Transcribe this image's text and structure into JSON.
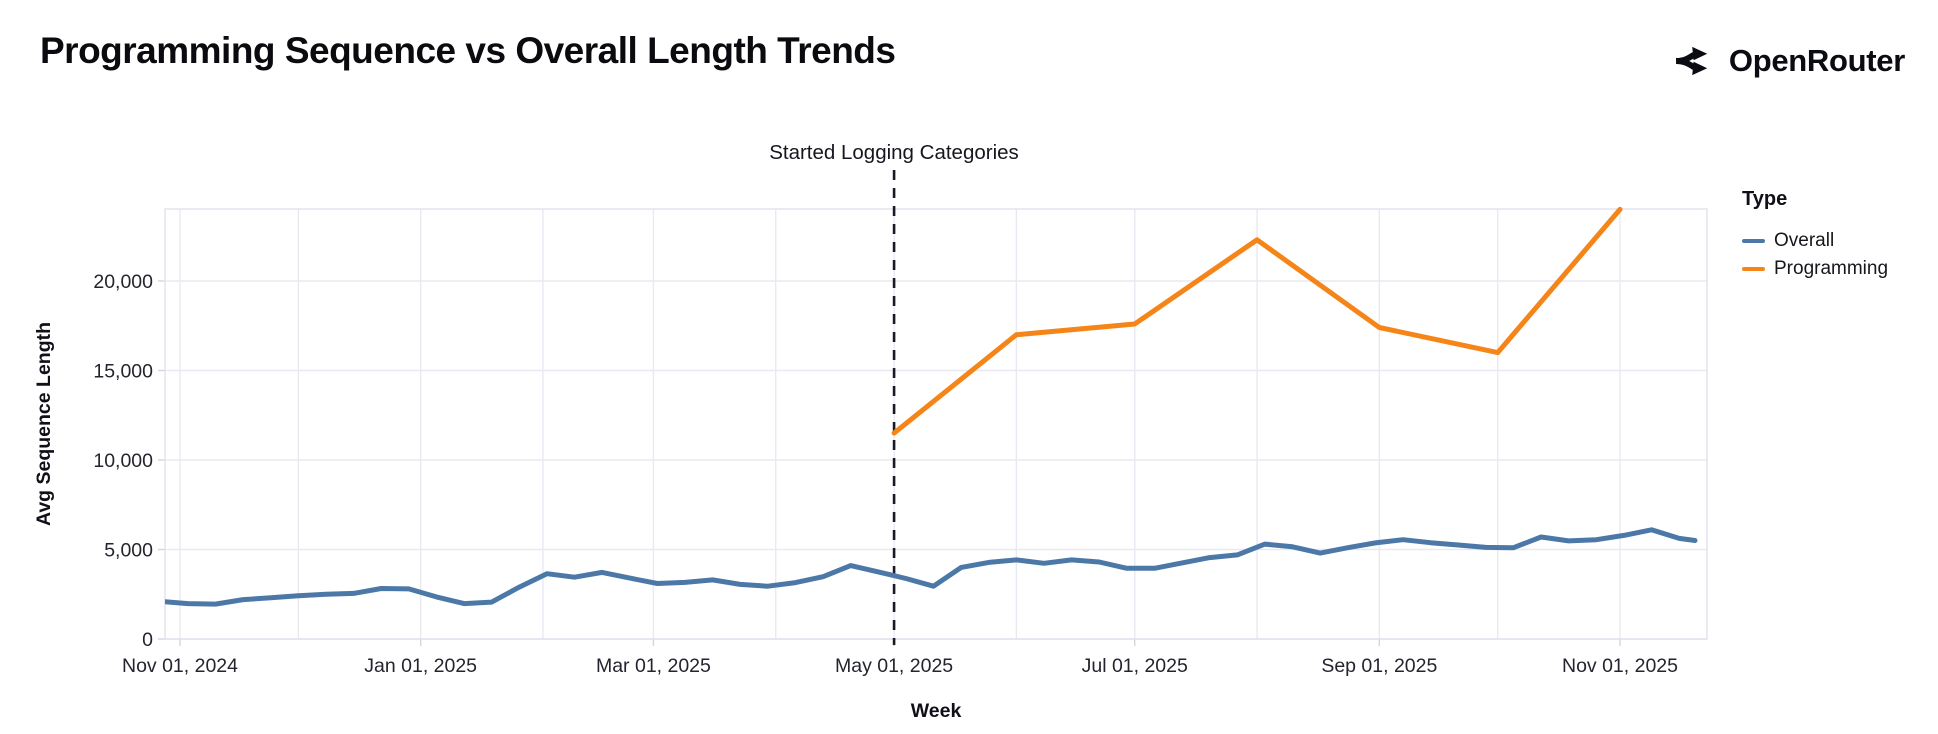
{
  "page": {
    "brand": "OpenRouter"
  },
  "chart_data": {
    "type": "line",
    "title": "Programming Sequence vs Overall Length Trends",
    "xlabel": "Week",
    "ylabel": "Avg Sequence Length",
    "ylim": [
      0,
      24000
    ],
    "grid": true,
    "y_ticks": [
      0,
      5000,
      10000,
      15000,
      20000
    ],
    "x_ticks": [
      {
        "date": "2024-11-01",
        "label": "Nov 01, 2024"
      },
      {
        "date": "2025-01-01",
        "label": "Jan 01, 2025"
      },
      {
        "date": "2025-03-01",
        "label": "Mar 01, 2025"
      },
      {
        "date": "2025-05-01",
        "label": "May 01, 2025"
      },
      {
        "date": "2025-07-01",
        "label": "Jul 01, 2025"
      },
      {
        "date": "2025-09-01",
        "label": "Sep 01, 2025"
      },
      {
        "date": "2025-11-01",
        "label": "Nov 01, 2025"
      }
    ],
    "x_grid_dates": [
      "2024-11-01",
      "2024-12-01",
      "2025-01-01",
      "2025-02-01",
      "2025-03-01",
      "2025-04-01",
      "2025-05-01",
      "2025-06-01",
      "2025-07-01",
      "2025-08-01",
      "2025-09-01",
      "2025-10-01",
      "2025-11-01"
    ],
    "annotation": {
      "text": "Started Logging Categories",
      "date": "2025-05-01"
    },
    "legend": {
      "title": "Type",
      "position": "right",
      "items": [
        {
          "label": "Overall",
          "color": "#4c78a8"
        },
        {
          "label": "Programming",
          "color": "#f58518"
        }
      ]
    },
    "colors": {
      "overall_line": "#4c78a8",
      "programming_line": "#f58518",
      "gridline": "#e9e9f2",
      "plot_border": "#e1e1ec",
      "tick_mark": "#d4d4e0",
      "axis_label": "#24242e",
      "annotation_rule": "#1a1a26"
    },
    "series": [
      {
        "name": "Overall",
        "color": "#4c78a8",
        "points": [
          [
            "2024-10-27",
            2100
          ],
          [
            "2024-11-03",
            1980
          ],
          [
            "2024-11-10",
            1950
          ],
          [
            "2024-11-17",
            2200
          ],
          [
            "2024-11-24",
            2300
          ],
          [
            "2024-12-01",
            2420
          ],
          [
            "2024-12-08",
            2500
          ],
          [
            "2024-12-15",
            2550
          ],
          [
            "2024-12-22",
            2820
          ],
          [
            "2024-12-29",
            2800
          ],
          [
            "2025-01-05",
            2350
          ],
          [
            "2025-01-12",
            1980
          ],
          [
            "2025-01-19",
            2060
          ],
          [
            "2025-01-26",
            2900
          ],
          [
            "2025-02-02",
            3650
          ],
          [
            "2025-02-09",
            3450
          ],
          [
            "2025-02-16",
            3720
          ],
          [
            "2025-02-23",
            3400
          ],
          [
            "2025-03-02",
            3100
          ],
          [
            "2025-03-09",
            3160
          ],
          [
            "2025-03-16",
            3300
          ],
          [
            "2025-03-23",
            3050
          ],
          [
            "2025-03-30",
            2950
          ],
          [
            "2025-04-06",
            3150
          ],
          [
            "2025-04-13",
            3480
          ],
          [
            "2025-04-20",
            4100
          ],
          [
            "2025-04-27",
            3750
          ],
          [
            "2025-05-04",
            3380
          ],
          [
            "2025-05-11",
            2950
          ],
          [
            "2025-05-18",
            4000
          ],
          [
            "2025-05-25",
            4280
          ],
          [
            "2025-06-01",
            4420
          ],
          [
            "2025-06-08",
            4230
          ],
          [
            "2025-06-15",
            4420
          ],
          [
            "2025-06-22",
            4300
          ],
          [
            "2025-06-29",
            3950
          ],
          [
            "2025-07-06",
            3950
          ],
          [
            "2025-07-13",
            4250
          ],
          [
            "2025-07-20",
            4550
          ],
          [
            "2025-07-27",
            4700
          ],
          [
            "2025-08-03",
            5300
          ],
          [
            "2025-08-10",
            5150
          ],
          [
            "2025-08-17",
            4800
          ],
          [
            "2025-08-24",
            5100
          ],
          [
            "2025-08-31",
            5370
          ],
          [
            "2025-09-07",
            5550
          ],
          [
            "2025-09-14",
            5380
          ],
          [
            "2025-09-21",
            5250
          ],
          [
            "2025-09-28",
            5120
          ],
          [
            "2025-10-05",
            5100
          ],
          [
            "2025-10-12",
            5700
          ],
          [
            "2025-10-19",
            5480
          ],
          [
            "2025-10-26",
            5550
          ],
          [
            "2025-11-02",
            5790
          ],
          [
            "2025-11-09",
            6100
          ],
          [
            "2025-11-16",
            5620
          ],
          [
            "2025-11-20",
            5500
          ]
        ]
      },
      {
        "name": "Programming",
        "color": "#f58518",
        "points": [
          [
            "2025-05-01",
            11500
          ],
          [
            "2025-06-01",
            17000
          ],
          [
            "2025-07-01",
            17600
          ],
          [
            "2025-08-01",
            22300
          ],
          [
            "2025-09-01",
            17400
          ],
          [
            "2025-10-01",
            16000
          ],
          [
            "2025-11-01",
            24000
          ]
        ]
      }
    ]
  }
}
